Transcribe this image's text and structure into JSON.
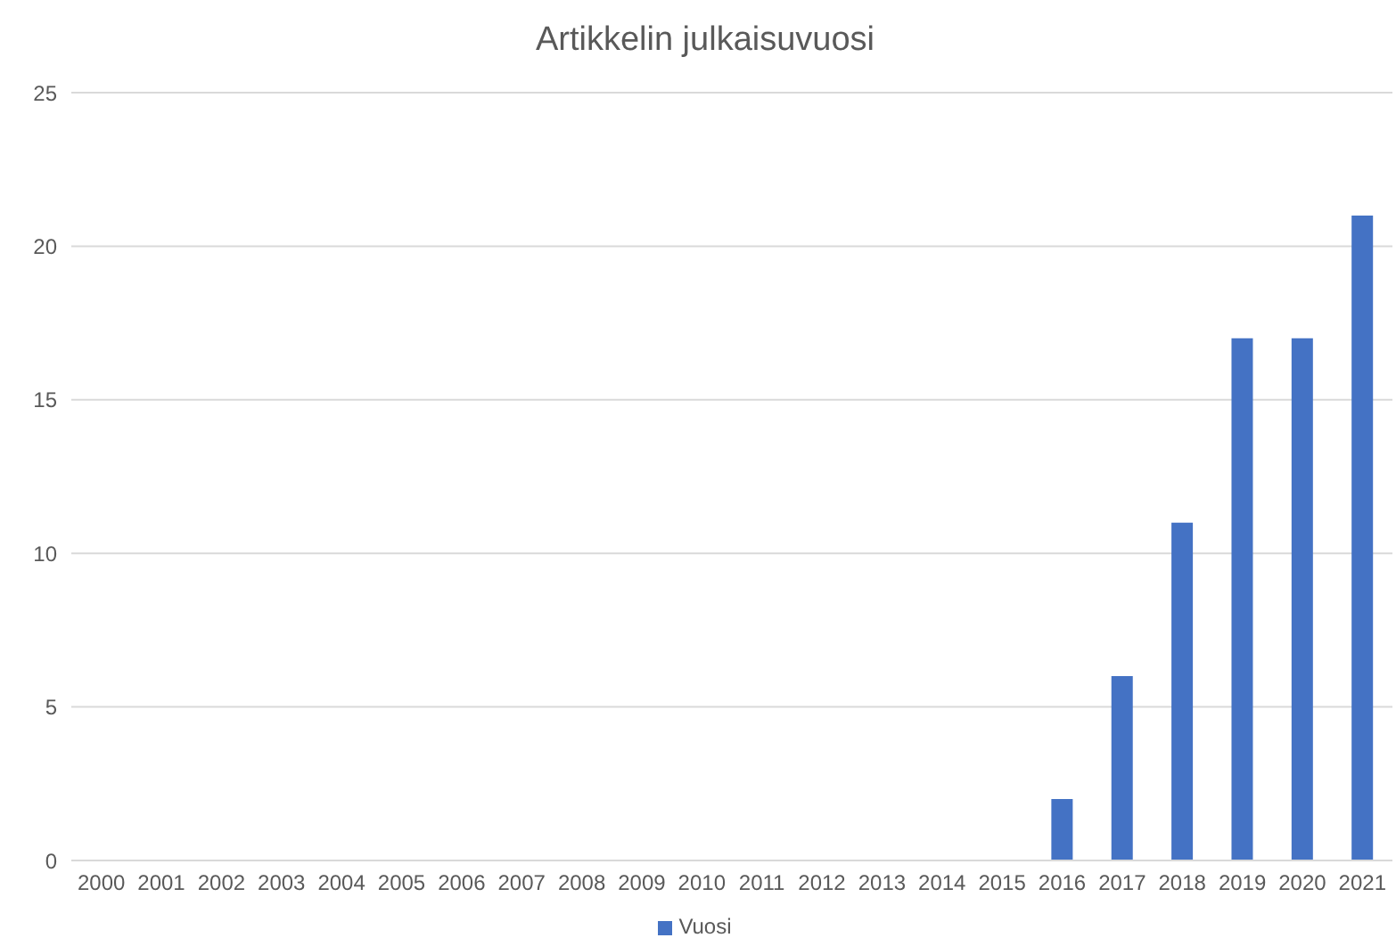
{
  "chart_data": {
    "type": "bar",
    "title": "Artikkelin julkaisuvuosi",
    "categories": [
      "2000",
      "2001",
      "2002",
      "2003",
      "2004",
      "2005",
      "2006",
      "2007",
      "2008",
      "2009",
      "2010",
      "2011",
      "2012",
      "2013",
      "2014",
      "2015",
      "2016",
      "2017",
      "2018",
      "2019",
      "2020",
      "2021"
    ],
    "series": [
      {
        "name": "Vuosi",
        "color": "#4472c4",
        "values": [
          0,
          0,
          0,
          0,
          0,
          0,
          0,
          0,
          0,
          0,
          0,
          0,
          0,
          0,
          0,
          0,
          2,
          6,
          11,
          17,
          17,
          21
        ]
      }
    ],
    "ylim": [
      0,
      25
    ],
    "yticks": [
      0,
      5,
      10,
      15,
      20,
      25
    ],
    "grid": "y",
    "legend": "bottom"
  }
}
